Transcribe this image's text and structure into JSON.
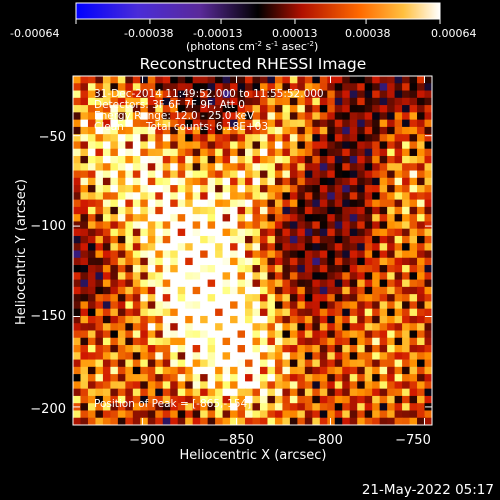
{
  "colorbar": {
    "ticks": [
      "-0.00064",
      "-0.00038",
      "-0.00013",
      "0.00013",
      "0.00038",
      "0.00064"
    ],
    "tick_values": [
      -0.00064,
      -0.00038,
      -0.00013,
      0.00013,
      0.00038,
      0.00064
    ],
    "range": [
      -0.00064,
      0.00064
    ],
    "unit_prefix": "(photons cm",
    "unit_exp1": "-2",
    "unit_mid": " s",
    "unit_exp2": "-1",
    "unit_mid2": " asec",
    "unit_exp3": "-2",
    "unit_suffix": ")"
  },
  "chart_data": {
    "type": "heatmap",
    "title": "Reconstructed RHESSI Image",
    "xlabel": "Heliocentric X (arcsec)",
    "ylabel": "Heliocentric Y (arcsec)",
    "xlim": [
      -937,
      -746
    ],
    "ylim": [
      -210,
      -17
    ],
    "x_ticks": [
      -900,
      -850,
      -800,
      -750
    ],
    "y_ticks": [
      -50,
      -100,
      -150,
      -200
    ],
    "x_tick_labels": [
      "−900",
      "−850",
      "−800",
      "−750"
    ],
    "y_tick_labels": [
      "−50",
      "−100",
      "−150",
      "−200"
    ],
    "peak": [
      -865,
      -154
    ],
    "colormap": [
      "#0000ff",
      "#5a2ccc",
      "#000000",
      "#d01800",
      "#ff9000",
      "#ffff70",
      "#ffffff"
    ],
    "annotations": [
      "31-Dec-2014 11:49:52.000 to 11:55:52.000",
      "Detectors: 3F 6F 7F 9F, Att 0",
      "Energy Range: 12.0 - 25.0 keV",
      "Clean",
      "Total counts: 6.18E+03"
    ],
    "peak_label": "Position of Peak = [-865,-154]"
  },
  "timestamp": "21-May-2022 05:17"
}
